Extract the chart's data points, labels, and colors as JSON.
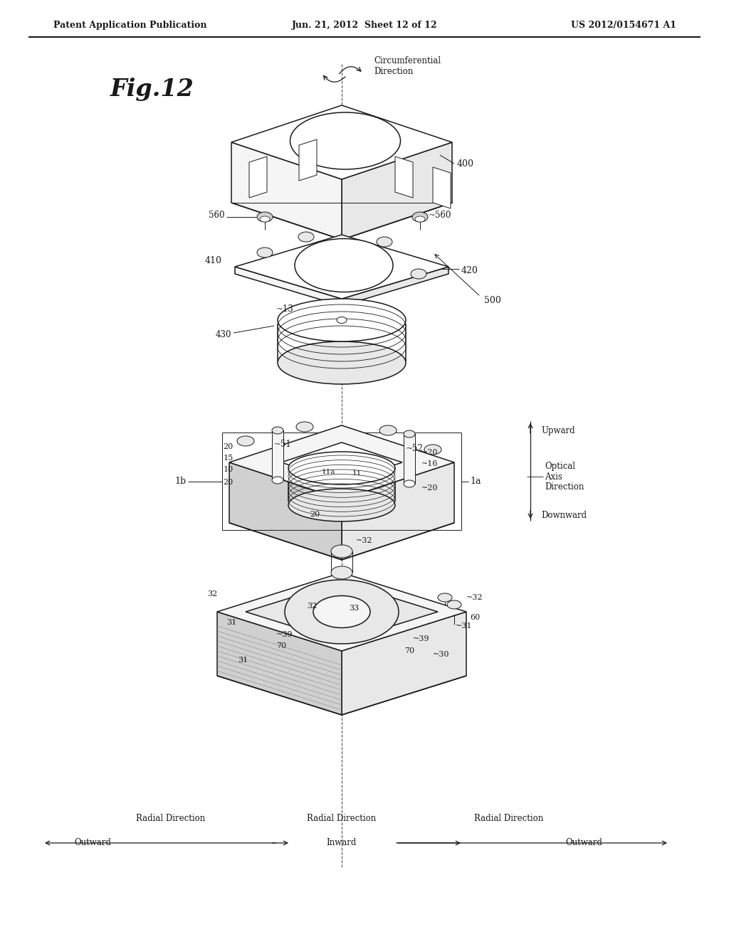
{
  "bg_color": "#ffffff",
  "header_left": "Patent Application Publication",
  "header_mid": "Jun. 21, 2012  Sheet 12 of 12",
  "header_right": "US 2012/0154671 A1",
  "fig_label": "Fig.12",
  "line_color": "#1a1a1a",
  "fill_light": "#f5f5f5",
  "fill_mid": "#e8e8e8",
  "fill_dark": "#d0d0d0",
  "fill_white": "#ffffff"
}
